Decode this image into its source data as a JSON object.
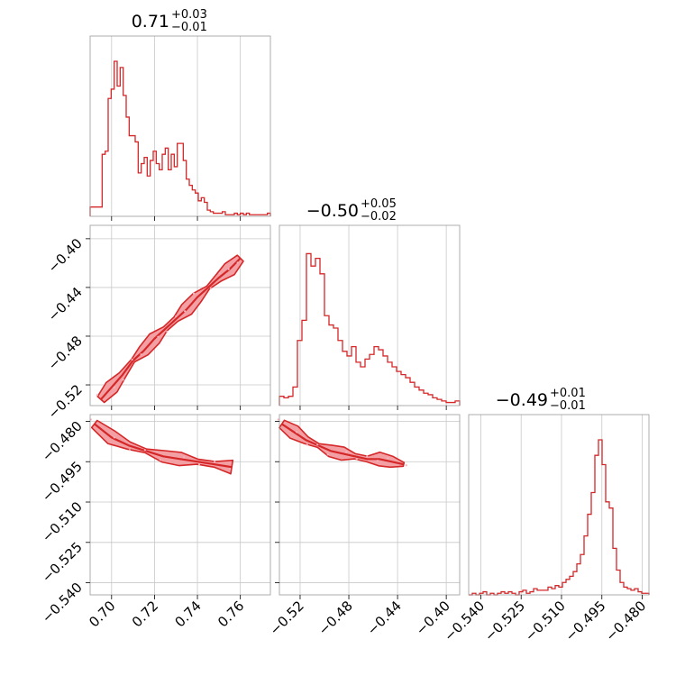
{
  "chart_data": {
    "type": "corner",
    "color": "#d62728",
    "fill_color": "#f2a0a4",
    "grid": true,
    "parameters": [
      {
        "title_value": "0.71",
        "title_plus": "+0.03",
        "title_minus": "−0.01",
        "range": [
          0.69,
          0.774
        ],
        "ticks": [
          "0.70",
          "0.72",
          "0.74",
          "0.76"
        ],
        "tick_values": [
          0.7,
          0.72,
          0.74,
          0.76
        ]
      },
      {
        "title_value": "−0.50",
        "title_plus": "+0.05",
        "title_minus": "−0.02",
        "range": [
          -0.537,
          -0.389
        ],
        "ticks": [
          "−0.52",
          "−0.48",
          "−0.44",
          "−0.40"
        ],
        "tick_values": [
          -0.52,
          -0.48,
          -0.44,
          -0.4
        ]
      },
      {
        "title_value": "−0.49",
        "title_plus": "+0.01",
        "title_minus": "−0.01",
        "range": [
          -0.5445,
          -0.4775
        ],
        "ticks": [
          "−0.540",
          "−0.525",
          "−0.510",
          "−0.495",
          "−0.480"
        ],
        "tick_values": [
          -0.54,
          -0.525,
          -0.51,
          -0.495,
          -0.48
        ]
      }
    ],
    "histograms": [
      {
        "param": 0,
        "edges_start": 0.69,
        "bin_width": 0.0014,
        "counts": [
          0.06,
          0.06,
          0.06,
          0.06,
          0.4,
          0.42,
          0.76,
          0.82,
          1.0,
          0.84,
          0.96,
          0.78,
          0.64,
          0.52,
          0.52,
          0.48,
          0.28,
          0.34,
          0.38,
          0.26,
          0.36,
          0.42,
          0.34,
          0.3,
          0.4,
          0.44,
          0.3,
          0.4,
          0.32,
          0.47,
          0.47,
          0.36,
          0.24,
          0.2,
          0.17,
          0.15,
          0.1,
          0.12,
          0.09,
          0.04,
          0.03,
          0.02,
          0.02,
          0.02,
          0.03,
          0.01,
          0.01,
          0.01,
          0.02,
          0.01,
          0.02,
          0.01,
          0.02,
          0.01,
          0.01,
          0.01,
          0.01,
          0.01,
          0.01,
          0.02
        ]
      },
      {
        "param": 1,
        "edges_start": -0.537,
        "bin_width": 0.0037,
        "counts": [
          0.06,
          0.05,
          0.06,
          0.12,
          0.42,
          0.55,
          0.98,
          0.9,
          0.95,
          0.85,
          0.58,
          0.52,
          0.5,
          0.42,
          0.35,
          0.32,
          0.38,
          0.28,
          0.25,
          0.3,
          0.33,
          0.38,
          0.36,
          0.32,
          0.28,
          0.25,
          0.22,
          0.2,
          0.18,
          0.15,
          0.12,
          0.1,
          0.08,
          0.07,
          0.05,
          0.04,
          0.03,
          0.02,
          0.02,
          0.03
        ]
      },
      {
        "param": 2,
        "edges_start": -0.5445,
        "bin_width": 0.00134,
        "counts": [
          0.0,
          0.01,
          0.0,
          0.01,
          0.02,
          0.0,
          0.01,
          0.0,
          0.01,
          0.02,
          0.01,
          0.02,
          0.01,
          0.0,
          0.02,
          0.03,
          0.01,
          0.02,
          0.04,
          0.03,
          0.03,
          0.03,
          0.05,
          0.04,
          0.06,
          0.05,
          0.08,
          0.1,
          0.12,
          0.15,
          0.2,
          0.26,
          0.38,
          0.52,
          0.66,
          0.9,
          1.0,
          0.84,
          0.6,
          0.56,
          0.3,
          0.16,
          0.08,
          0.05,
          0.04,
          0.03,
          0.04,
          0.02,
          0.01,
          0.01
        ]
      }
    ],
    "pair_samples": [
      {
        "x_param": 0,
        "y_param": 1,
        "points": [
          [
            0.695,
            -0.532
          ],
          [
            0.7,
            -0.522
          ],
          [
            0.705,
            -0.512
          ],
          [
            0.71,
            -0.5
          ],
          [
            0.715,
            -0.492
          ],
          [
            0.72,
            -0.482
          ],
          [
            0.725,
            -0.474
          ],
          [
            0.73,
            -0.466
          ],
          [
            0.735,
            -0.458
          ],
          [
            0.74,
            -0.448
          ],
          [
            0.745,
            -0.44
          ],
          [
            0.75,
            -0.432
          ],
          [
            0.755,
            -0.425
          ],
          [
            0.76,
            -0.416
          ]
        ]
      },
      {
        "x_param": 0,
        "y_param": 2,
        "points": [
          [
            0.692,
            -0.481
          ],
          [
            0.7,
            -0.486
          ],
          [
            0.708,
            -0.489
          ],
          [
            0.716,
            -0.491
          ],
          [
            0.724,
            -0.493
          ],
          [
            0.732,
            -0.494
          ],
          [
            0.74,
            -0.495
          ],
          [
            0.748,
            -0.496
          ],
          [
            0.756,
            -0.497
          ]
        ]
      },
      {
        "x_param": 1,
        "y_param": 2,
        "points": [
          [
            -0.535,
            -0.481
          ],
          [
            -0.525,
            -0.484
          ],
          [
            -0.515,
            -0.487
          ],
          [
            -0.505,
            -0.489
          ],
          [
            -0.495,
            -0.491
          ],
          [
            -0.485,
            -0.492
          ],
          [
            -0.475,
            -0.493
          ],
          [
            -0.465,
            -0.494
          ],
          [
            -0.455,
            -0.494
          ],
          [
            -0.445,
            -0.495
          ],
          [
            -0.435,
            -0.496
          ]
        ]
      }
    ]
  }
}
